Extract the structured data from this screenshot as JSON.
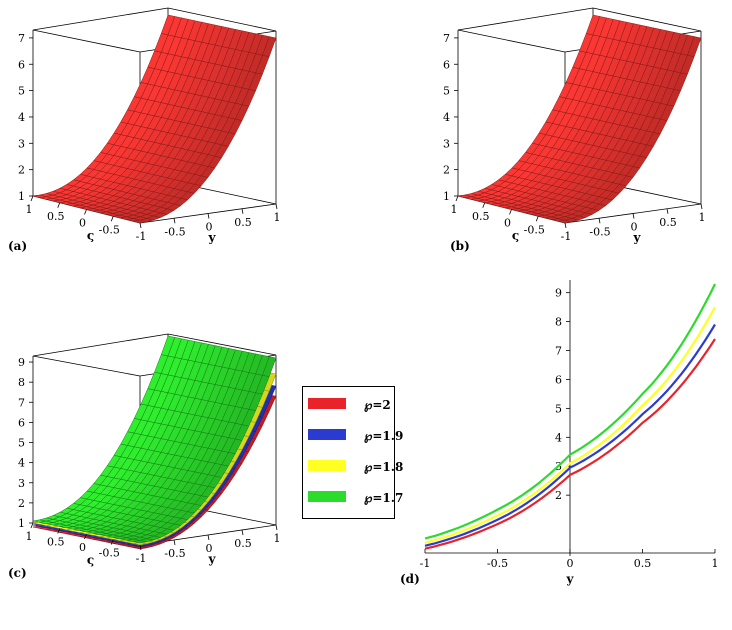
{
  "chart_data": [
    {
      "type": "surface",
      "panel": "(a)",
      "zlabel_ticks": [
        "1",
        "2",
        "3",
        "4",
        "5",
        "6",
        "7"
      ],
      "varsigma_ticks": [
        "1",
        "0.5",
        "0",
        "-0.5"
      ],
      "y_ticks": [
        "-1",
        "-0.5",
        "0",
        "0.5",
        "1"
      ],
      "xlabel": "ς",
      "ylabel": "y",
      "color": "#e8332f",
      "zrange": [
        1,
        7.3
      ]
    },
    {
      "type": "surface",
      "panel": "(b)",
      "zlabel_ticks": [
        "1",
        "2",
        "3",
        "4",
        "5",
        "6",
        "7"
      ],
      "varsigma_ticks": [
        "1",
        "0.5",
        "0",
        "-0.5"
      ],
      "y_ticks": [
        "-1",
        "-0.5",
        "0",
        "0.5",
        "1"
      ],
      "xlabel": "ς",
      "ylabel": "y",
      "color": "#e8332f",
      "zrange": [
        1,
        7.3
      ]
    },
    {
      "type": "surface",
      "panel": "(c)",
      "zlabel_ticks": [
        "1",
        "2",
        "3",
        "4",
        "5",
        "6",
        "7",
        "8",
        "9"
      ],
      "varsigma_ticks": [
        "1",
        "0.5",
        "0",
        "-0.5"
      ],
      "y_ticks": [
        "-1",
        "-0.5",
        "0",
        "0.5",
        "1"
      ],
      "xlabel": "ς",
      "ylabel": "y",
      "zrange": [
        1,
        9.3
      ]
    },
    {
      "type": "line",
      "panel": "(d)",
      "xlabel": "y",
      "ylabel": "",
      "x_ticks": [
        "-1",
        "-0.5",
        "0",
        "0.5",
        "1"
      ],
      "y_ticks": [
        "2",
        "3",
        "4",
        "5",
        "6",
        "7",
        "8",
        "9"
      ],
      "xlim": [
        -1,
        1
      ],
      "ylim": [
        0,
        9.3
      ],
      "series": [
        {
          "name": "℘=2",
          "color": "#e8232a",
          "x": [
            -1,
            -0.5,
            0,
            0.5,
            1
          ],
          "values": [
            0.15,
            1.0,
            2.7,
            4.5,
            7.4
          ]
        },
        {
          "name": "℘=1.9",
          "color": "#2b3bd0",
          "x": [
            -1,
            -0.5,
            0,
            0.5,
            1
          ],
          "values": [
            0.25,
            1.15,
            2.95,
            4.8,
            7.9
          ]
        },
        {
          "name": "℘=1.8",
          "color": "#ffff22",
          "x": [
            -1,
            -0.5,
            0,
            0.5,
            1
          ],
          "values": [
            0.35,
            1.3,
            3.1,
            5.1,
            8.5
          ]
        },
        {
          "name": "℘=1.7",
          "color": "#2bdc2b",
          "x": [
            -1,
            -0.5,
            0,
            0.5,
            1
          ],
          "values": [
            0.5,
            1.5,
            3.4,
            5.5,
            9.3
          ]
        }
      ]
    }
  ],
  "legend": {
    "items": [
      {
        "label": "℘=2",
        "color": "#e8232a"
      },
      {
        "label": "℘=1.9",
        "color": "#2b3bd0"
      },
      {
        "label": "℘=1.8",
        "color": "#ffff22"
      },
      {
        "label": "℘=1.7",
        "color": "#2bdc2b"
      }
    ]
  },
  "captions": {
    "a": "(a)",
    "b": "(b)",
    "c": "(c)",
    "d": "(d)"
  }
}
